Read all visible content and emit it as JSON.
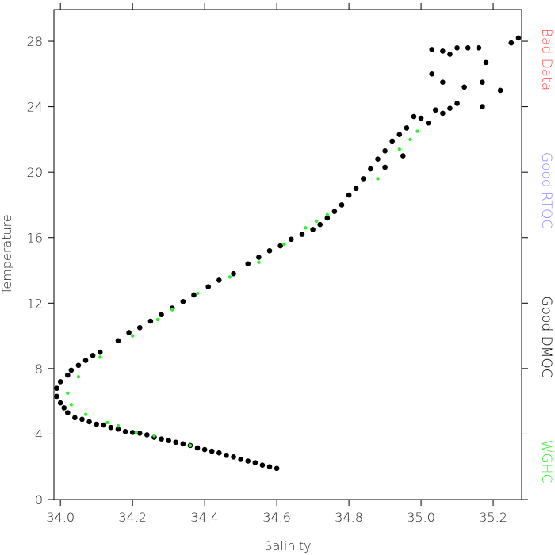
{
  "chart_data": {
    "type": "scatter",
    "xlabel": "Salinity",
    "ylabel": "Temperature",
    "xlim": [
      33.982,
      35.279
    ],
    "ylim": [
      0,
      29.94
    ],
    "xticks": [
      {
        "value": 34.0,
        "label": "34.0"
      },
      34.2,
      34.4,
      34.6,
      34.8,
      {
        "value": 35.0,
        "label": "35.0"
      },
      35.2
    ],
    "yticks": [
      0,
      4,
      8,
      12,
      16,
      20,
      24,
      28
    ],
    "series": [
      {
        "name": "Bad Data",
        "color": "#ff4a4a",
        "x": [],
        "y": []
      },
      {
        "name": "Good RTQC",
        "color": "#8c8cff",
        "x": [],
        "y": []
      },
      {
        "name": "Good DMQC",
        "color": "#000000",
        "x": [
          34.6,
          34.58,
          34.56,
          34.54,
          34.52,
          34.5,
          34.48,
          34.46,
          34.44,
          34.42,
          34.4,
          34.38,
          34.36,
          34.34,
          34.32,
          34.3,
          34.28,
          34.26,
          34.24,
          34.22,
          34.2,
          34.18,
          34.16,
          34.14,
          34.12,
          34.1,
          34.08,
          34.06,
          34.04,
          34.02,
          34.01,
          34.0,
          33.99,
          33.99,
          34.0,
          34.02,
          34.03,
          34.05,
          34.07,
          34.09,
          34.11,
          34.16,
          34.19,
          34.22,
          34.25,
          34.28,
          34.31,
          34.34,
          34.37,
          34.41,
          34.44,
          34.48,
          34.52,
          34.55,
          34.58,
          34.61,
          34.64,
          34.67,
          34.7,
          34.72,
          34.74,
          34.76,
          34.78,
          34.8,
          34.82,
          34.84,
          34.86,
          34.88,
          34.9,
          34.92,
          34.94,
          34.96,
          34.98,
          35.0,
          35.02,
          35.04,
          35.06,
          35.08,
          35.1,
          34.95,
          34.9,
          35.03,
          35.06,
          35.08,
          35.1,
          35.13,
          35.16,
          35.18,
          35.22,
          35.25,
          35.27,
          35.17,
          35.12,
          35.03,
          35.06,
          35.17
        ],
        "y": [
          1.9,
          2.0,
          2.1,
          2.25,
          2.35,
          2.45,
          2.6,
          2.7,
          2.85,
          2.95,
          3.05,
          3.15,
          3.3,
          3.4,
          3.5,
          3.6,
          3.7,
          3.8,
          3.95,
          4.05,
          4.1,
          4.15,
          4.3,
          4.4,
          4.55,
          4.6,
          4.75,
          4.9,
          5.0,
          5.3,
          5.6,
          5.9,
          6.3,
          6.8,
          7.2,
          7.6,
          7.9,
          8.2,
          8.5,
          8.8,
          9.0,
          9.7,
          10.2,
          10.5,
          10.9,
          11.3,
          11.7,
          12.1,
          12.5,
          13.0,
          13.4,
          13.8,
          14.4,
          14.8,
          15.2,
          15.5,
          15.9,
          16.2,
          16.5,
          16.8,
          17.2,
          17.6,
          18.0,
          18.6,
          19.0,
          19.6,
          20.2,
          20.8,
          21.3,
          21.9,
          22.3,
          22.7,
          23.4,
          23.3,
          23.0,
          23.8,
          23.6,
          23.9,
          24.2,
          21.0,
          20.3,
          27.5,
          27.4,
          27.2,
          27.6,
          27.6,
          27.6,
          26.7,
          25.0,
          27.9,
          28.2,
          25.5,
          25.2,
          26.0,
          25.5,
          24.0
        ]
      },
      {
        "name": "WGHC",
        "color": "#33ee33",
        "x": [
          34.02,
          34.03,
          34.05,
          34.07,
          34.11,
          34.13,
          34.16,
          34.2,
          34.21,
          34.26,
          34.27,
          34.31,
          34.36,
          34.38,
          34.47,
          34.55,
          34.62,
          34.68,
          34.71,
          34.74,
          34.88,
          34.94,
          34.97,
          34.99
        ],
        "y": [
          6.5,
          5.8,
          7.5,
          5.2,
          8.7,
          4.7,
          4.5,
          10.0,
          4.1,
          3.9,
          11.0,
          11.6,
          3.3,
          12.6,
          13.6,
          14.5,
          15.6,
          16.6,
          17.0,
          17.4,
          19.6,
          21.4,
          22.0,
          22.5
        ]
      }
    ]
  }
}
